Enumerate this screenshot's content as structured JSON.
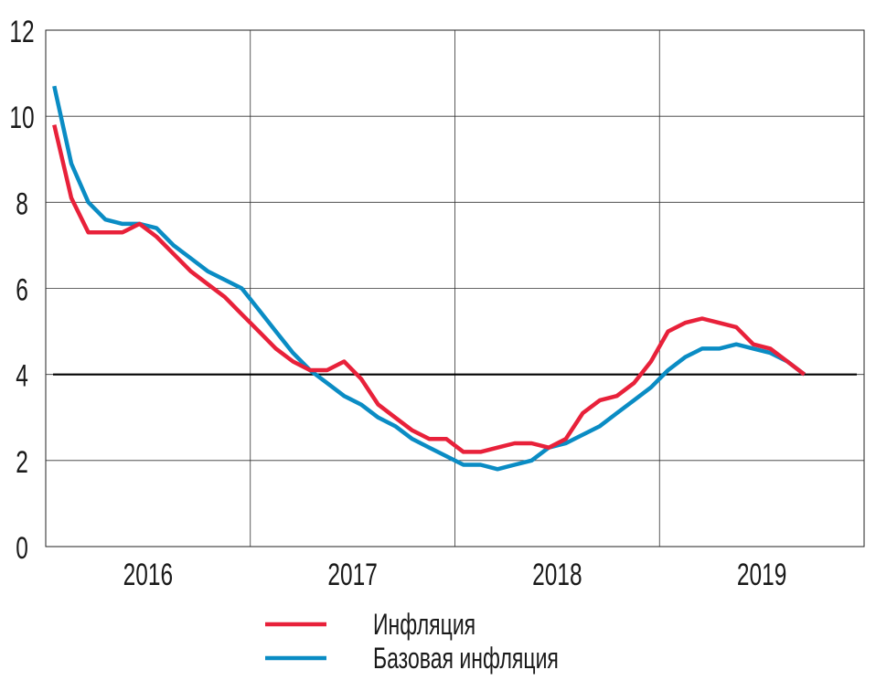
{
  "chart_data": {
    "type": "line",
    "title": "",
    "xlabel": "",
    "ylabel": "",
    "ylim": [
      0,
      12
    ],
    "yticks": [
      0,
      2,
      4,
      6,
      8,
      10,
      12
    ],
    "xtick_labels": [
      "2016",
      "2017",
      "2018",
      "2019"
    ],
    "x_start": "2016-01",
    "x_step": "month",
    "grid": true,
    "reference_line": {
      "value": 4,
      "color": "#000000"
    },
    "legend_position": "bottom-center",
    "series": [
      {
        "name": "Инфляция",
        "color": "#e8213a",
        "values": [
          9.8,
          8.1,
          7.3,
          7.3,
          7.3,
          7.5,
          7.2,
          6.8,
          6.4,
          6.1,
          5.8,
          5.4,
          5.0,
          4.6,
          4.3,
          4.1,
          4.1,
          4.3,
          3.9,
          3.3,
          3.0,
          2.7,
          2.5,
          2.5,
          2.2,
          2.2,
          2.3,
          2.4,
          2.4,
          2.3,
          2.5,
          3.1,
          3.4,
          3.5,
          3.8,
          4.3,
          5.0,
          5.2,
          5.3,
          5.2,
          5.1,
          4.7,
          4.6,
          4.3,
          4.0
        ]
      },
      {
        "name": "Базовая инфляция",
        "color": "#0a8cc4",
        "values": [
          10.7,
          8.9,
          8.0,
          7.6,
          7.5,
          7.5,
          7.4,
          7.0,
          6.7,
          6.4,
          6.2,
          6.0,
          5.5,
          5.0,
          4.5,
          4.1,
          3.8,
          3.5,
          3.3,
          3.0,
          2.8,
          2.5,
          2.3,
          2.1,
          1.9,
          1.9,
          1.8,
          1.9,
          2.0,
          2.3,
          2.4,
          2.6,
          2.8,
          3.1,
          3.4,
          3.7,
          4.1,
          4.4,
          4.6,
          4.6,
          4.7,
          4.6,
          4.5,
          4.3,
          4.0
        ]
      }
    ]
  }
}
